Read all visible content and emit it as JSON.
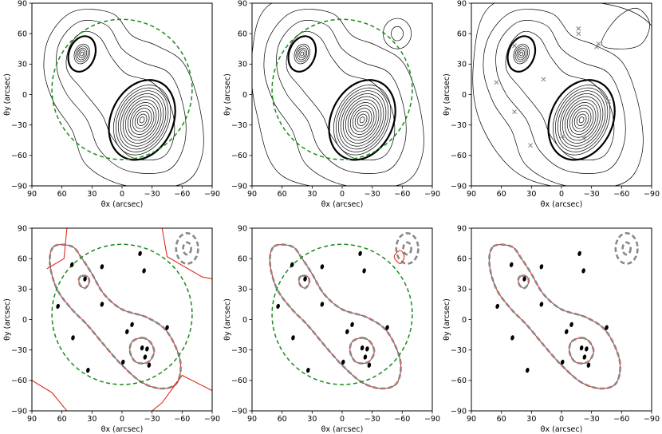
{
  "figure": {
    "x_axis_label": "θx (arcsec)",
    "y_axis_label": "θy (arcsec)",
    "x_ticks": [
      "90",
      "60",
      "30",
      "0",
      "−30",
      "−60",
      "−90"
    ],
    "y_ticks": [
      "90",
      "60",
      "30",
      "0",
      "−30",
      "−60",
      "−90"
    ]
  },
  "chart_data": [
    {
      "type": "contour",
      "panel": "top-left",
      "title": "",
      "xlabel": "θx (arcsec)",
      "ylabel": "θy (arcsec)",
      "xlim": [
        90,
        -90
      ],
      "ylim": [
        -90,
        90
      ],
      "contours": "convergence",
      "peaks": [
        [
          40,
          40
        ],
        [
          -20,
          -25
        ]
      ],
      "field_circle": {
        "center": [
          0,
          5
        ],
        "radius": 70
      },
      "colors": {
        "contour": "#000000",
        "field_circle": "#1a8a1a"
      }
    },
    {
      "type": "contour",
      "panel": "top-middle",
      "title": "",
      "xlabel": "θx (arcsec)",
      "ylabel": "θy (arcsec)",
      "xlim": [
        90,
        -90
      ],
      "ylim": [
        -90,
        90
      ],
      "contours": "convergence",
      "peaks": [
        [
          40,
          40
        ],
        [
          -20,
          -25
        ],
        [
          -55,
          60
        ]
      ],
      "field_circle": {
        "center": [
          0,
          5
        ],
        "radius": 70
      },
      "colors": {
        "contour": "#000000",
        "field_circle": "#1a8a1a"
      }
    },
    {
      "type": "contour",
      "panel": "top-right",
      "title": "",
      "xlabel": "θx (arcsec)",
      "ylabel": "θy (arcsec)",
      "xlim": [
        90,
        -90
      ],
      "ylim": [
        -90,
        90
      ],
      "contours": "convergence",
      "peaks": [
        [
          40,
          40
        ],
        [
          -20,
          -25
        ]
      ],
      "cross_markers": [
        [
          65,
          12
        ],
        [
          47,
          -17
        ],
        [
          31,
          -50
        ],
        [
          18,
          15
        ],
        [
          -1,
          -41
        ],
        [
          -22,
          -43
        ],
        [
          -47,
          -7
        ],
        [
          -35,
          47
        ],
        [
          -37,
          50
        ],
        [
          -17,
          65
        ],
        [
          -17,
          60
        ],
        [
          47,
          48
        ]
      ],
      "colors": {
        "contour": "#000000",
        "cross": "#888888"
      }
    },
    {
      "type": "curves",
      "panel": "bottom-left",
      "title": "",
      "xlabel": "θx (arcsec)",
      "ylabel": "θy (arcsec)",
      "xlim": [
        90,
        -90
      ],
      "ylim": [
        -90,
        90
      ],
      "series": [
        {
          "name": "critical curve",
          "style": "solid red"
        },
        {
          "name": "model curve",
          "style": "grey dashed"
        }
      ],
      "galaxies": [
        [
          64,
          13
        ],
        [
          50,
          54
        ],
        [
          37,
          40
        ],
        [
          20,
          52
        ],
        [
          20,
          15
        ],
        [
          49,
          -18
        ],
        [
          34,
          -50
        ],
        [
          -18,
          65
        ],
        [
          -22,
          48
        ],
        [
          -45,
          -8
        ],
        [
          -1,
          -42
        ],
        [
          -20,
          -28
        ],
        [
          -25,
          -29
        ],
        [
          -23,
          -37
        ],
        [
          -27,
          -45
        ],
        [
          -5,
          -12
        ],
        [
          -10,
          -5
        ]
      ],
      "field_circle": {
        "center": [
          0,
          5
        ],
        "radius": 70
      },
      "colors": {
        "critical": "#e22b1e",
        "model": "#888888",
        "field_circle": "#1a8a1a"
      }
    },
    {
      "type": "curves",
      "panel": "bottom-middle",
      "title": "",
      "xlabel": "θx (arcsec)",
      "ylabel": "θy (arcsec)",
      "xlim": [
        90,
        -90
      ],
      "ylim": [
        -90,
        90
      ],
      "series": [
        {
          "name": "critical curve",
          "style": "solid red"
        },
        {
          "name": "model curve",
          "style": "grey dashed"
        }
      ],
      "galaxies": [
        [
          64,
          13
        ],
        [
          50,
          54
        ],
        [
          37,
          40
        ],
        [
          20,
          52
        ],
        [
          20,
          15
        ],
        [
          49,
          -18
        ],
        [
          34,
          -50
        ],
        [
          -18,
          65
        ],
        [
          -22,
          48
        ],
        [
          -45,
          -8
        ],
        [
          -1,
          -42
        ],
        [
          -20,
          -28
        ],
        [
          -25,
          -29
        ],
        [
          -23,
          -37
        ],
        [
          -27,
          -45
        ],
        [
          -5,
          -12
        ],
        [
          -10,
          -5
        ]
      ],
      "field_circle": {
        "center": [
          0,
          5
        ],
        "radius": 70
      },
      "colors": {
        "critical": "#e22b1e",
        "model": "#888888",
        "field_circle": "#1a8a1a"
      }
    },
    {
      "type": "curves",
      "panel": "bottom-right",
      "title": "",
      "xlabel": "θx (arcsec)",
      "ylabel": "θy (arcsec)",
      "xlim": [
        90,
        -90
      ],
      "ylim": [
        -90,
        90
      ],
      "series": [
        {
          "name": "critical curve",
          "style": "solid red"
        },
        {
          "name": "model curve",
          "style": "grey dashed"
        }
      ],
      "galaxies": [
        [
          64,
          13
        ],
        [
          50,
          54
        ],
        [
          37,
          40
        ],
        [
          20,
          52
        ],
        [
          20,
          15
        ],
        [
          49,
          -18
        ],
        [
          34,
          -50
        ],
        [
          -18,
          65
        ],
        [
          -22,
          48
        ],
        [
          -45,
          -8
        ],
        [
          -1,
          -42
        ],
        [
          -20,
          -28
        ],
        [
          -25,
          -29
        ],
        [
          -23,
          -37
        ],
        [
          -27,
          -45
        ],
        [
          -5,
          -12
        ],
        [
          -10,
          -5
        ]
      ],
      "colors": {
        "critical": "#e22b1e",
        "model": "#888888"
      }
    }
  ]
}
